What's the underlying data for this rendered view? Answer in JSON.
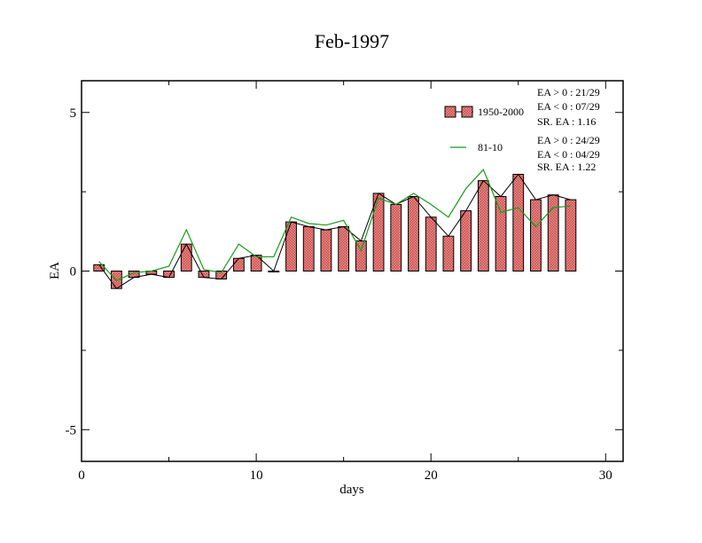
{
  "chart_data": {
    "type": "bar",
    "title": "Feb-1997",
    "xlabel": "days",
    "ylabel": "EA",
    "xlim": [
      0,
      31
    ],
    "ylim": [
      -6,
      6
    ],
    "x_ticks": [
      0,
      10,
      20,
      30
    ],
    "x_tick_labels": [
      "0",
      "10",
      "20",
      "30"
    ],
    "y_ticks": [
      -5,
      0,
      5
    ],
    "y_tick_labels": [
      "-5",
      "0",
      "5"
    ],
    "grid": false,
    "legend_position": "top-right",
    "x": [
      1,
      2,
      3,
      4,
      5,
      6,
      7,
      8,
      9,
      10,
      11,
      12,
      13,
      14,
      15,
      16,
      17,
      18,
      19,
      20,
      21,
      22,
      23,
      24,
      25,
      26,
      27,
      28
    ],
    "series": [
      {
        "name": "1950-2000",
        "kind": "bar",
        "color": "#e06666",
        "values": [
          0.2,
          -0.55,
          -0.2,
          -0.1,
          -0.2,
          0.85,
          -0.2,
          -0.25,
          0.4,
          0.5,
          0.0,
          1.55,
          1.4,
          1.3,
          1.4,
          0.95,
          2.45,
          2.1,
          2.35,
          1.7,
          1.1,
          1.9,
          2.85,
          2.35,
          3.05,
          2.25,
          2.4,
          2.25
        ]
      },
      {
        "name": "",
        "kind": "line",
        "color": "#000000",
        "values": [
          0.2,
          -0.55,
          -0.2,
          -0.1,
          -0.2,
          0.85,
          -0.2,
          -0.25,
          0.4,
          0.5,
          0.0,
          1.55,
          1.4,
          1.3,
          1.4,
          0.95,
          2.45,
          2.1,
          2.35,
          1.7,
          1.1,
          1.9,
          2.85,
          2.35,
          3.05,
          2.25,
          2.4,
          2.25
        ]
      },
      {
        "name": "81-10",
        "kind": "line",
        "color": "#1a9a1a",
        "values": [
          0.3,
          -0.3,
          -0.05,
          0.0,
          0.15,
          1.3,
          0.05,
          -0.05,
          0.85,
          0.45,
          0.45,
          1.7,
          1.5,
          1.45,
          1.6,
          0.65,
          2.3,
          2.1,
          2.45,
          2.1,
          1.7,
          2.6,
          3.2,
          1.85,
          2.0,
          1.4,
          2.0,
          2.05
        ]
      }
    ],
    "stats": [
      {
        "line1": "EA > 0 : 21/29",
        "line2": "EA < 0 : 07/29",
        "line3": "SR. EA :  1.16"
      },
      {
        "line1": "EA > 0 : 24/29",
        "line2": "EA < 0 : 04/29",
        "line3": "SR. EA :  1.22"
      }
    ]
  }
}
